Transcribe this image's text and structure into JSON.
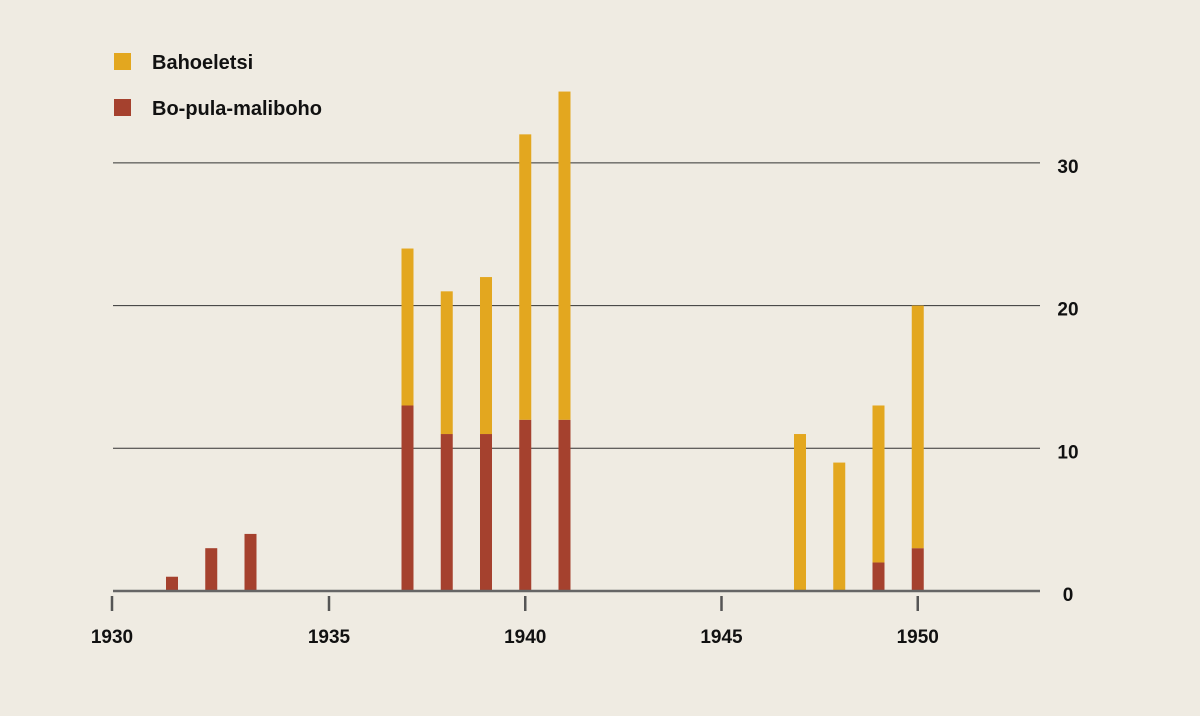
{
  "chart_data": {
    "type": "bar",
    "stacked": true,
    "categories": [
      1931,
      1932,
      1933,
      1937,
      1938,
      1939,
      1940,
      1941,
      1947,
      1948,
      1949,
      1950
    ],
    "series": [
      {
        "name": "Bo-pula-maliboho",
        "color": "#a5412e",
        "values": [
          1,
          3,
          4,
          13,
          11,
          11,
          12,
          12,
          0,
          0,
          2,
          3
        ]
      },
      {
        "name": "Bahoeletsi",
        "color": "#e3a71f",
        "values": [
          0,
          0,
          0,
          11,
          10,
          11,
          20,
          23,
          11,
          9,
          11,
          17
        ]
      }
    ],
    "xlim": [
      1930,
      1953
    ],
    "x_ticks": [
      "1930",
      "1935",
      "1940",
      "1945",
      "1950"
    ],
    "ylim": [
      0,
      35
    ],
    "y_ticks": [
      "0",
      "10",
      "20",
      "30"
    ],
    "y_axis_side": "right",
    "grid": "horizontal",
    "legend": "top-left",
    "title": "",
    "xlabel": "",
    "ylabel": ""
  }
}
